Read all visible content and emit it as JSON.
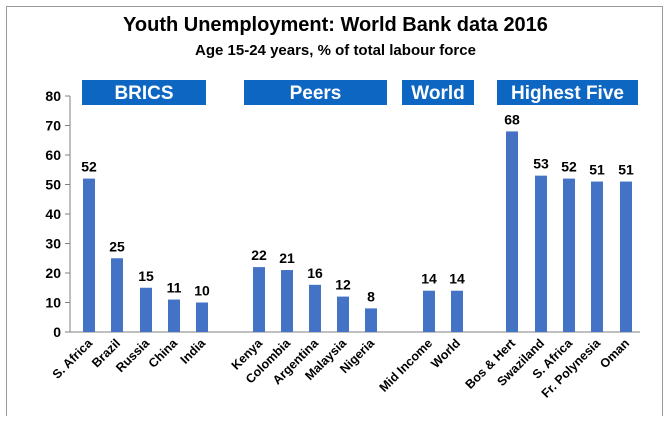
{
  "chart_data": {
    "type": "bar",
    "title": "Youth Unemployment: World Bank data 2016",
    "subtitle": "Age 15-24 years, % of total labour force",
    "ylim": [
      0,
      80
    ],
    "yticks": [
      0,
      10,
      20,
      30,
      40,
      50,
      60,
      70,
      80
    ],
    "grid": false,
    "bar_color": "#4472c4",
    "group_label_bg": "#0d66c2",
    "groups": [
      {
        "label": "BRICS",
        "categories": [
          "S. Africa",
          "Brazil",
          "Russia",
          "China",
          "India"
        ],
        "values": [
          52,
          25,
          15,
          11,
          10
        ],
        "data_labels": [
          "52",
          "25",
          "15",
          "11",
          "10"
        ]
      },
      {
        "label": "Peers",
        "categories": [
          "Kenya",
          "Colombia",
          "Argentina",
          "Malaysia",
          "Nigeria"
        ],
        "values": [
          22,
          21,
          16,
          12,
          8
        ],
        "data_labels": [
          "22",
          "21",
          "16",
          "12",
          "8"
        ]
      },
      {
        "label": "World",
        "categories": [
          "Mid Income",
          "World"
        ],
        "values": [
          14,
          14
        ],
        "data_labels": [
          "14",
          "14"
        ]
      },
      {
        "label": "Highest Five",
        "categories": [
          "Bos & Hert",
          "Swaziland",
          "S. Africa",
          "Fr. Polynesia",
          "Oman"
        ],
        "values": [
          68,
          53,
          52,
          51,
          51
        ],
        "data_labels": [
          "68",
          "53",
          "52",
          "51",
          "51"
        ]
      }
    ]
  }
}
